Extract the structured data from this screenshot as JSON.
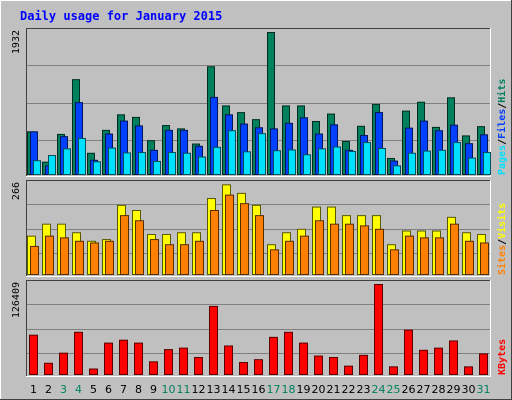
{
  "colors": {
    "background": "#c0c0c0",
    "plot": "#c0c0c0",
    "grid": "#808080",
    "title": "#0000ff",
    "hits": "#00805c",
    "files": "#0040ff",
    "pages": "#00e0ff",
    "visits": "#ffff00",
    "sites": "#ff8000",
    "kbytes": "#ff0000",
    "weekday_label": "#000000",
    "weekend_label": "#00805c"
  },
  "chart_data": {
    "type": "bar",
    "title": "Daily usage for January 2015",
    "x": [
      "1",
      "2",
      "3",
      "4",
      "5",
      "6",
      "7",
      "8",
      "9",
      "10",
      "11",
      "12",
      "13",
      "14",
      "15",
      "16",
      "17",
      "18",
      "19",
      "20",
      "21",
      "22",
      "23",
      "24",
      "25",
      "26",
      "27",
      "28",
      "29",
      "30",
      "31"
    ],
    "weekend_days": [
      3,
      4,
      10,
      11,
      17,
      18,
      24,
      25,
      31
    ],
    "panels": [
      {
        "name": "hits-files-pages",
        "ymax_label": "1932",
        "ymax": 1932,
        "series": [
          {
            "name": "Hits",
            "values": [
              590,
              180,
              555,
              1295,
              300,
              610,
              820,
              785,
              470,
              675,
              630,
              425,
              1470,
              940,
              850,
              755,
              1932,
              940,
              940,
              730,
              830,
              460,
              665,
              960,
              230,
              870,
              990,
              650,
              1050,
              535,
              660
            ]
          },
          {
            "name": "Files",
            "values": [
              590,
              130,
              525,
              985,
              205,
              560,
              735,
              670,
              340,
              610,
              610,
              395,
              1055,
              820,
              695,
              645,
              630,
              705,
              780,
              560,
              685,
              340,
              540,
              850,
              195,
              640,
              735,
              605,
              680,
              430,
              550
            ]
          },
          {
            "name": "Pages",
            "values": [
              200,
              270,
              360,
              500,
              185,
              370,
              305,
              310,
              190,
              310,
              300,
              250,
              380,
              605,
              320,
              565,
              335,
              345,
              280,
              360,
              385,
              325,
              445,
              365,
              130,
              300,
              330,
              340,
              445,
              235,
              310
            ]
          }
        ]
      },
      {
        "name": "visits-sites",
        "ymax_label": "266",
        "ymax": 266,
        "series": [
          {
            "name": "Visits",
            "values": [
              115,
              150,
              150,
              125,
              100,
              105,
              205,
              190,
              120,
              120,
              125,
              125,
              225,
              265,
              240,
              205,
              90,
              125,
              135,
              200,
              200,
              175,
              175,
              175,
              90,
              130,
              130,
              130,
              170,
              125,
              120
            ]
          },
          {
            "name": "Sites",
            "values": [
              85,
              115,
              110,
              100,
              95,
              100,
              175,
              160,
              105,
              90,
              90,
              100,
              190,
              235,
              210,
              175,
              75,
              100,
              115,
              160,
              150,
              150,
              145,
              135,
              75,
              115,
              110,
              110,
              150,
              100,
              95
            ]
          }
        ]
      },
      {
        "name": "kbytes",
        "ymax_label": "126409",
        "ymax": 126409,
        "series": [
          {
            "name": "KBytes",
            "values": [
              56000,
              17000,
              31000,
              60000,
              9000,
              45000,
              49000,
              45000,
              19000,
              36000,
              38000,
              25000,
              96000,
              41000,
              18000,
              22000,
              53000,
              60000,
              45000,
              27000,
              25000,
              13000,
              28000,
              126409,
              12000,
              63000,
              35000,
              38000,
              48000,
              12000,
              30000
            ]
          }
        ]
      }
    ],
    "legend": {
      "panel1": [
        {
          "name": "Pages",
          "color_key": "pages"
        },
        {
          "name": "Files",
          "color_key": "files"
        },
        {
          "name": "Hits",
          "color_key": "hits"
        }
      ],
      "panel2": [
        {
          "name": "Sites",
          "color_key": "sites"
        },
        {
          "name": "Visits",
          "color_key": "visits"
        }
      ],
      "panel3": [
        {
          "name": "KBytes",
          "color_key": "kbytes"
        }
      ],
      "separator": "/"
    }
  }
}
